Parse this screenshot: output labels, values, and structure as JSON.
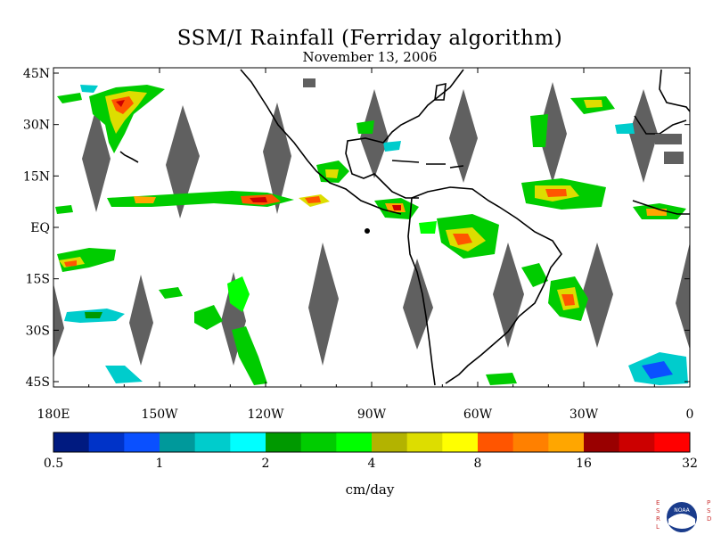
{
  "header": {
    "title": "SSM/I Rainfall (Ferriday algorithm)",
    "date": "November 13, 2006"
  },
  "map": {
    "lat_labels": [
      "45N",
      "30N",
      "15N",
      "EQ",
      "15S",
      "30S",
      "45S"
    ],
    "lon_labels": [
      "180E",
      "150W",
      "120W",
      "90W",
      "60W",
      "30W",
      "0"
    ],
    "land_color": "#000000",
    "gap_color": "#606060"
  },
  "colorbar": {
    "unit": "cm/day",
    "tick_labels": [
      "0.5",
      "1",
      "2",
      "4",
      "8",
      "16",
      "32"
    ],
    "colors": [
      "#001a80",
      "#0033c8",
      "#0a50ff",
      "#00999b",
      "#00cccc",
      "#00ffff",
      "#009900",
      "#00cc00",
      "#00ff00",
      "#b3b300",
      "#dddd00",
      "#ffff00",
      "#ff5500",
      "#ff8000",
      "#ffa600",
      "#990000",
      "#cc0000",
      "#ff0000"
    ]
  },
  "logo": {
    "left_letters": "ESRL",
    "right_letters": "PSD",
    "emblem_text": "NOAA"
  }
}
